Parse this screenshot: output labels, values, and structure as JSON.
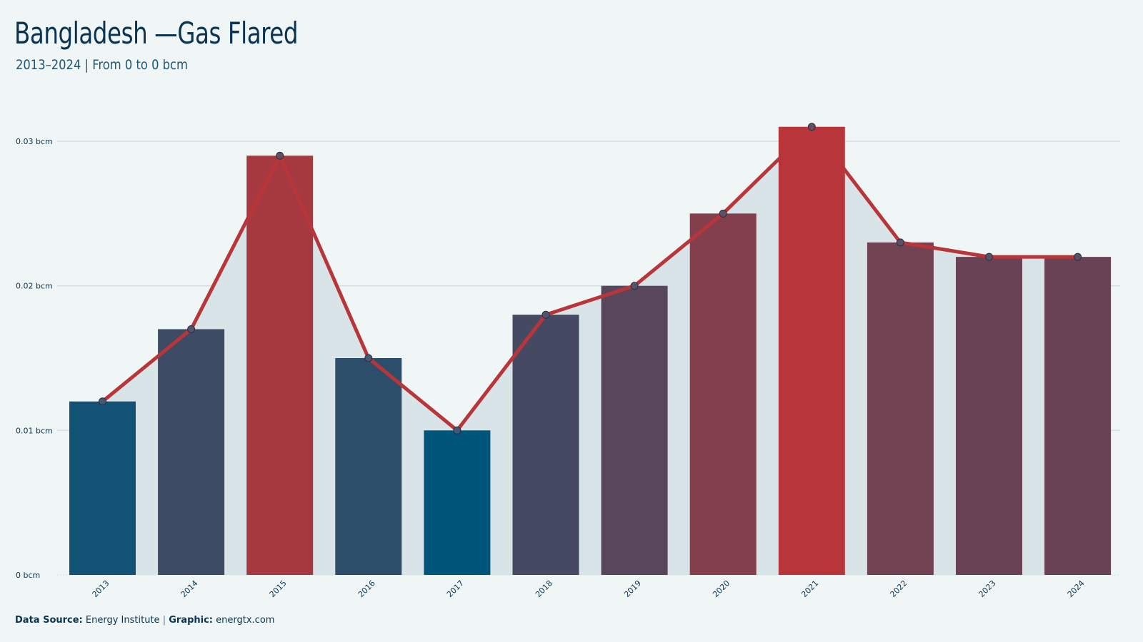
{
  "header": {
    "title": "Bangladesh —Gas Flared",
    "subtitle": "2013–2024 | From 0 to 0 bcm"
  },
  "footer": {
    "source_label": "Data Source:",
    "source_value": "Energy Institute",
    "separator": "|",
    "graphic_label": "Graphic:",
    "graphic_value": "energtx.com"
  },
  "chart_data": {
    "type": "bar",
    "categories": [
      "2013",
      "2014",
      "2015",
      "2016",
      "2017",
      "2018",
      "2019",
      "2020",
      "2021",
      "2022",
      "2023",
      "2024"
    ],
    "values": [
      0.012,
      0.017,
      0.029,
      0.015,
      0.01,
      0.018,
      0.02,
      0.025,
      0.031,
      0.023,
      0.022,
      0.022
    ],
    "overlay": "line with markers and shaded area",
    "ylim": [
      0,
      0.03
    ],
    "yticks": [
      0,
      0.01,
      0.02,
      0.03
    ],
    "ytick_labels": [
      "0 bcm",
      "0.01 bcm",
      "0.02 bcm",
      "0.03 bcm"
    ],
    "grid": true,
    "colors": {
      "low": "#00557a",
      "high": "#b8363a",
      "line": "#b8363a",
      "area": "#d8e4e8",
      "gridline": "#d3dde1"
    }
  }
}
